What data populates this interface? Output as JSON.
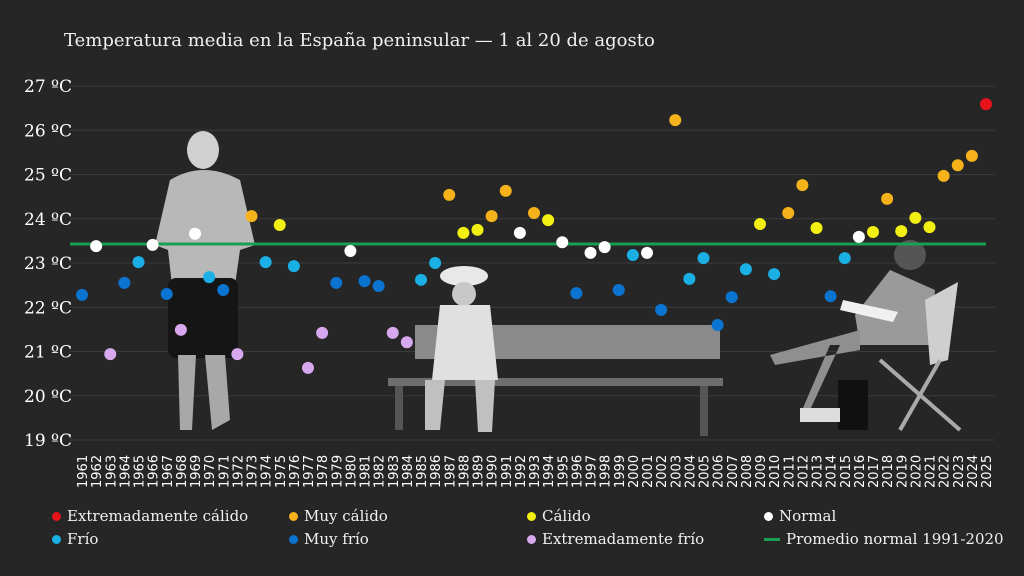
{
  "chart_data": {
    "type": "scatter",
    "title": "Temperatura media en la España peninsular — 1 al 20 de agosto",
    "ylim": [
      19,
      27
    ],
    "yticks": [
      19,
      20,
      21,
      22,
      23,
      24,
      25,
      26,
      27
    ],
    "ytick_suffix": " ºC",
    "grid": true,
    "legend_placement": "bottom",
    "reference_line": {
      "name": "Promedio normal 1991-2020",
      "value": 23.43,
      "color": "#1a9e50"
    },
    "categories": [
      {
        "key": "ec",
        "name": "Extremadamente cálido",
        "color": "#e8121a"
      },
      {
        "key": "mc",
        "name": "Muy cálido",
        "color": "#f5b21b"
      },
      {
        "key": "c",
        "name": "Cálido",
        "color": "#f2ef12"
      },
      {
        "key": "n",
        "name": "Normal",
        "color": "#ffffff"
      },
      {
        "key": "f",
        "name": "Frío",
        "color": "#1ab0e6"
      },
      {
        "key": "mf",
        "name": "Muy frío",
        "color": "#0a74d0"
      },
      {
        "key": "ef",
        "name": "Extremadamente frío",
        "color": "#d7a8ee"
      }
    ],
    "points": [
      [
        1961,
        22.28,
        "mf"
      ],
      [
        1962,
        23.38,
        "n"
      ],
      [
        1963,
        20.94,
        "ef"
      ],
      [
        1964,
        22.55,
        "mf"
      ],
      [
        1965,
        23.02,
        "f"
      ],
      [
        1966,
        23.41,
        "n"
      ],
      [
        1967,
        22.3,
        "mf"
      ],
      [
        1968,
        21.49,
        "ef"
      ],
      [
        1969,
        23.66,
        "n"
      ],
      [
        1970,
        22.68,
        "f"
      ],
      [
        1971,
        22.39,
        "mf"
      ],
      [
        1972,
        20.94,
        "ef"
      ],
      [
        1973,
        24.06,
        "mc"
      ],
      [
        1974,
        23.02,
        "f"
      ],
      [
        1975,
        23.86,
        "c"
      ],
      [
        1976,
        22.93,
        "f"
      ],
      [
        1977,
        20.63,
        "ef"
      ],
      [
        1978,
        21.42,
        "ef"
      ],
      [
        1979,
        22.55,
        "mf"
      ],
      [
        1980,
        23.27,
        "n"
      ],
      [
        1981,
        22.59,
        "mf"
      ],
      [
        1982,
        22.48,
        "mf"
      ],
      [
        1983,
        21.42,
        "ef"
      ],
      [
        1984,
        21.21,
        "ef"
      ],
      [
        1985,
        22.62,
        "f"
      ],
      [
        1986,
        23.0,
        "f"
      ],
      [
        1987,
        24.54,
        "mc"
      ],
      [
        1988,
        23.68,
        "c"
      ],
      [
        1989,
        23.75,
        "c"
      ],
      [
        1990,
        24.06,
        "mc"
      ],
      [
        1991,
        24.63,
        "mc"
      ],
      [
        1992,
        23.68,
        "n"
      ],
      [
        1993,
        24.13,
        "mc"
      ],
      [
        1994,
        23.97,
        "c"
      ],
      [
        1995,
        23.47,
        "n"
      ],
      [
        1996,
        22.32,
        "mf"
      ],
      [
        1997,
        23.23,
        "n"
      ],
      [
        1998,
        23.36,
        "n"
      ],
      [
        1999,
        22.39,
        "mf"
      ],
      [
        2000,
        23.18,
        "f"
      ],
      [
        2001,
        23.23,
        "n"
      ],
      [
        2002,
        21.94,
        "mf"
      ],
      [
        2003,
        26.23,
        "mc"
      ],
      [
        2004,
        22.64,
        "f"
      ],
      [
        2005,
        23.11,
        "f"
      ],
      [
        2006,
        21.6,
        "mf"
      ],
      [
        2007,
        22.23,
        "mf"
      ],
      [
        2008,
        22.86,
        "f"
      ],
      [
        2009,
        23.88,
        "c"
      ],
      [
        2010,
        22.75,
        "f"
      ],
      [
        2011,
        24.13,
        "mc"
      ],
      [
        2012,
        24.76,
        "mc"
      ],
      [
        2013,
        23.79,
        "c"
      ],
      [
        2014,
        22.25,
        "mf"
      ],
      [
        2015,
        23.11,
        "f"
      ],
      [
        2016,
        23.59,
        "n"
      ],
      [
        2017,
        23.7,
        "c"
      ],
      [
        2018,
        24.45,
        "mc"
      ],
      [
        2019,
        23.72,
        "c"
      ],
      [
        2020,
        24.02,
        "c"
      ],
      [
        2021,
        23.81,
        "c"
      ],
      [
        2022,
        24.97,
        "mc"
      ],
      [
        2023,
        25.21,
        "mc"
      ],
      [
        2024,
        25.42,
        "mc"
      ],
      [
        2025,
        26.59,
        "ec"
      ]
    ]
  }
}
